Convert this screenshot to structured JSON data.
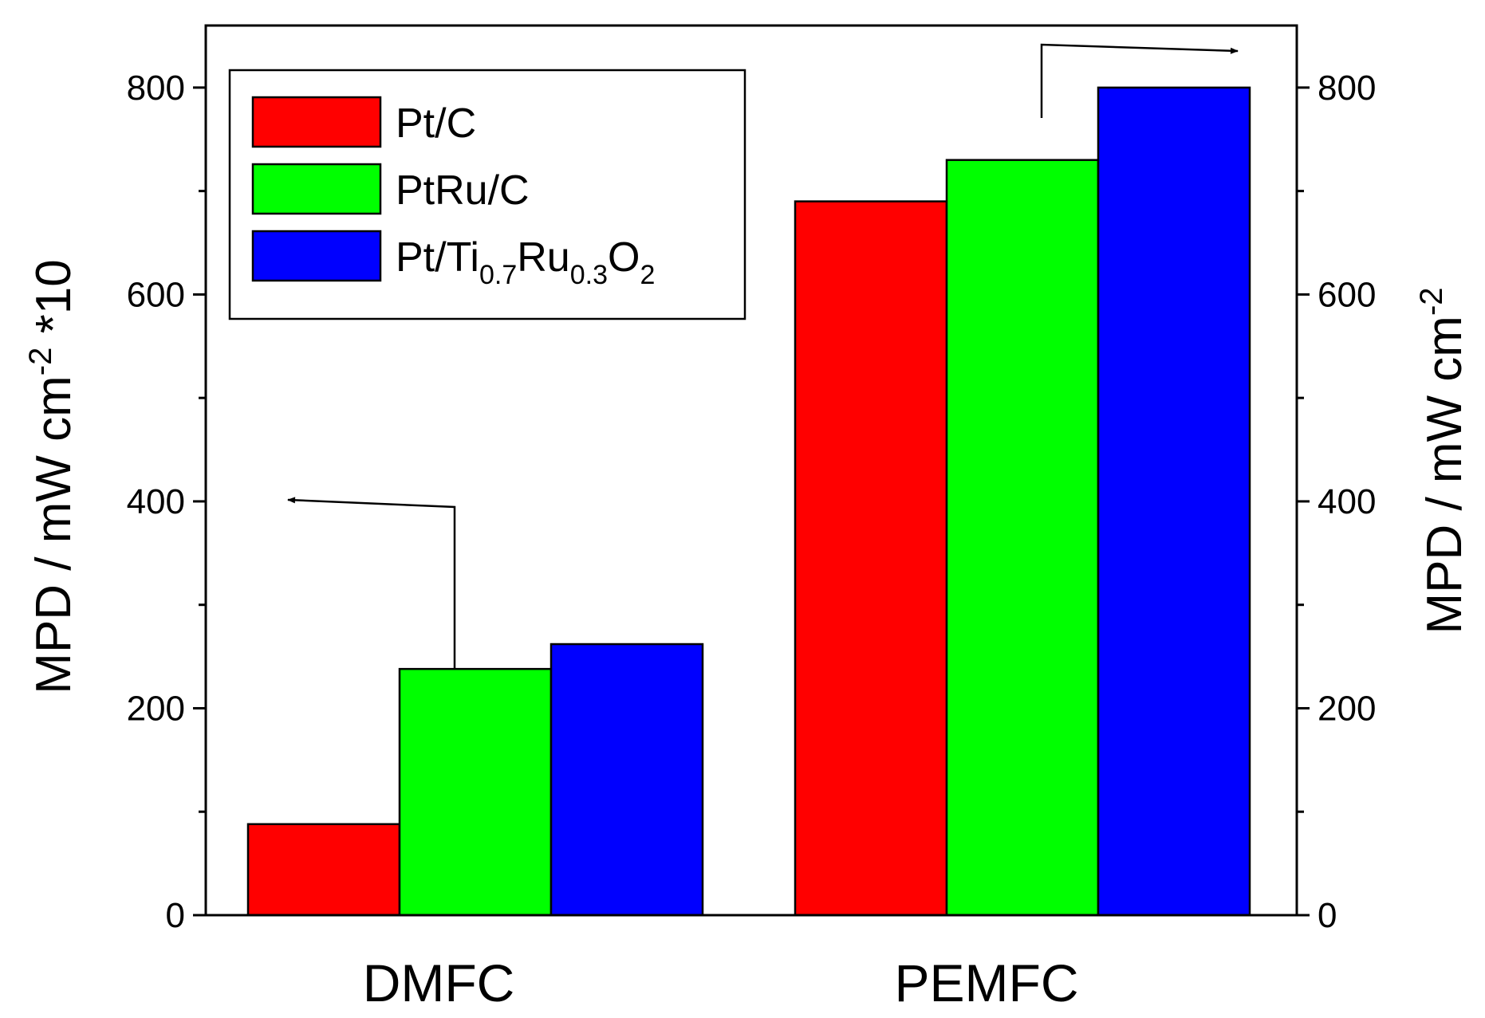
{
  "chart_data": {
    "type": "bar",
    "categories": [
      "DMFC",
      "PEMFC"
    ],
    "series": [
      {
        "name": "Pt/C",
        "color": "#ff0000",
        "values": [
          88,
          690
        ]
      },
      {
        "name": "PtRu/C",
        "color": "#00ff00",
        "values": [
          238,
          730
        ]
      },
      {
        "name": "Pt/Ti0.7Ru0.3O2",
        "color": "#0000ff",
        "values": [
          262,
          800
        ]
      }
    ],
    "legend_parts": [
      [
        {
          "t": "Pt/C"
        }
      ],
      [
        {
          "t": "PtRu/C"
        }
      ],
      [
        {
          "t": "Pt/Ti"
        },
        {
          "t": "0.7",
          "sub": true
        },
        {
          "t": "Ru"
        },
        {
          "t": "0.3",
          "sub": true
        },
        {
          "t": "O"
        },
        {
          "t": "2",
          "sub": true
        }
      ]
    ],
    "y_left": {
      "label_parts": [
        {
          "t": "MPD / mW cm"
        },
        {
          "t": "-2",
          "sup": true
        },
        {
          "t": " *10"
        }
      ],
      "ylim": [
        0,
        860
      ],
      "ticks": [
        0,
        200,
        400,
        600,
        800
      ],
      "minor_ticks": [
        100,
        300,
        500,
        700
      ]
    },
    "y_right": {
      "label_parts": [
        {
          "t": "MPD / mW cm"
        },
        {
          "t": "-2",
          "sup": true
        }
      ],
      "ylim": [
        0,
        860
      ],
      "ticks": [
        0,
        200,
        400,
        600,
        800
      ],
      "minor_ticks": [
        100,
        300,
        500,
        700
      ]
    },
    "legend_position": "top-left",
    "annotations": [
      {
        "name": "left-axis-arrow",
        "series": "PtRu/C",
        "category": "DMFC",
        "points_to": "left axis"
      },
      {
        "name": "right-axis-arrow",
        "series": "PtRu/C",
        "category": "PEMFC",
        "points_to": "right axis"
      }
    ],
    "grid": false
  }
}
